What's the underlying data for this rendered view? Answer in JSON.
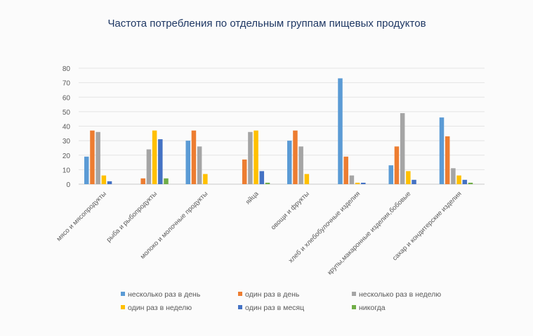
{
  "chart_data": {
    "type": "bar",
    "title": "Частота потребления по отдельным группам пищевых продуктов",
    "xlabel": "",
    "ylabel": "",
    "ylim": [
      0,
      80
    ],
    "yticks": [
      0,
      10,
      20,
      30,
      40,
      50,
      60,
      70,
      80
    ],
    "grid": true,
    "legend_position": "bottom",
    "categories": [
      "мясо и мясопродукты",
      "рыба и рыбопродукты",
      "молоко и молочные продукты",
      "яйца",
      "овощи и фрукты",
      "хлеб и хлебобулочные изделия",
      "крупы,макаронные изделия,бобовые",
      "сахар и кондитерские изделия"
    ],
    "series": [
      {
        "name": "несколько раз в день",
        "color": "#5b9bd5",
        "values": [
          19,
          0,
          30,
          0,
          30,
          73,
          13,
          46
        ]
      },
      {
        "name": "один раз в день",
        "color": "#ed7d31",
        "values": [
          37,
          4,
          37,
          17,
          37,
          19,
          26,
          33
        ]
      },
      {
        "name": "несколько раз в неделю",
        "color": "#a5a5a5",
        "values": [
          36,
          24,
          26,
          36,
          26,
          6,
          49,
          11
        ]
      },
      {
        "name": "один раз в неделю",
        "color": "#ffc000",
        "values": [
          6,
          37,
          7,
          37,
          7,
          1,
          9,
          6
        ]
      },
      {
        "name": "один раз в месяц",
        "color": "#4472c4",
        "values": [
          2,
          31,
          0,
          9,
          0,
          1,
          3,
          3
        ]
      },
      {
        "name": "никогда",
        "color": "#70ad47",
        "values": [
          0,
          4,
          0,
          1,
          0,
          0,
          0,
          1
        ]
      }
    ]
  }
}
